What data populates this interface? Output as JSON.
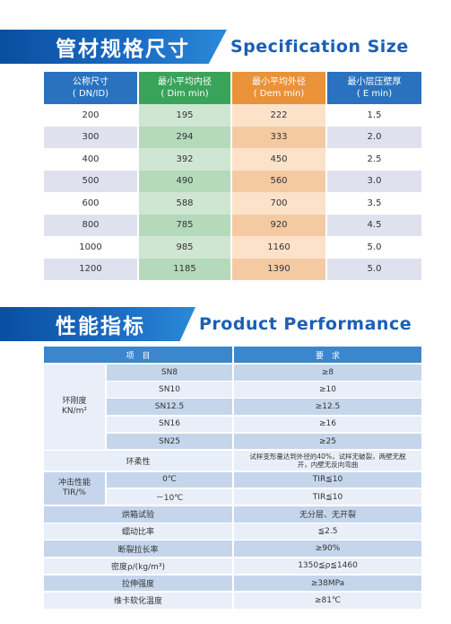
{
  "spec": {
    "title_cn": "管材规格尺寸",
    "title_en": "Specification Size",
    "headers": [
      {
        "cn": "公称尺寸",
        "en": "( DN/ID)",
        "color": "#2a72bf"
      },
      {
        "cn": "最小平均内径",
        "en": "( Dim min)",
        "color": "#3aa35a"
      },
      {
        "cn": "最小平均外径",
        "en": "( Dem min)",
        "color": "#e9923a"
      },
      {
        "cn": "最小层压壁厚",
        "en": "( E min)",
        "color": "#2a72bf"
      }
    ],
    "rows": [
      [
        "200",
        "195",
        "222",
        "1.5"
      ],
      [
        "300",
        "294",
        "333",
        "2.0"
      ],
      [
        "400",
        "392",
        "450",
        "2.5"
      ],
      [
        "500",
        "490",
        "560",
        "3.0"
      ],
      [
        "600",
        "588",
        "700",
        "3.5"
      ],
      [
        "800",
        "785",
        "920",
        "4.5"
      ],
      [
        "1000",
        "985",
        "1160",
        "5.0"
      ],
      [
        "1200",
        "1185",
        "1390",
        "5.0"
      ]
    ]
  },
  "perf": {
    "title_cn": "性能指标",
    "title_en": "Product Performance",
    "col_item": "项　目",
    "col_req": "要　求",
    "ring_label": "环刚度\nKN/m²",
    "ring_rows": [
      {
        "label": "SN8",
        "value": "≥8"
      },
      {
        "label": "SN10",
        "value": "≥10"
      },
      {
        "label": "SN12.5",
        "value": "≥12.5"
      },
      {
        "label": "SN16",
        "value": "≥16"
      },
      {
        "label": "SN25",
        "value": "≥25"
      }
    ],
    "flex_label": "环柔性",
    "flex_value": "试样变形量达到外径的40%，试样无破裂，两壁无脱开，内壁无反向弯曲",
    "impact_label": "冲击性能\nTIR/%",
    "impact_rows": [
      {
        "label": "0℃",
        "value": "TIR≦10"
      },
      {
        "label": "－10℃",
        "value": "TIR≦10"
      }
    ],
    "other_rows": [
      {
        "label": "烘箱试验",
        "value": "无分层、无开裂"
      },
      {
        "label": "蠕动比率",
        "value": "≦2.5"
      },
      {
        "label": "断裂拉长率",
        "value": "≥90%"
      },
      {
        "label": "密度ρ/(kg/m³)",
        "value": "1350≦ρ≦1460"
      },
      {
        "label": "拉伸强度",
        "value": "≥38MPa"
      },
      {
        "label": "维卡软化温度",
        "value": "≥81℃"
      }
    ]
  }
}
